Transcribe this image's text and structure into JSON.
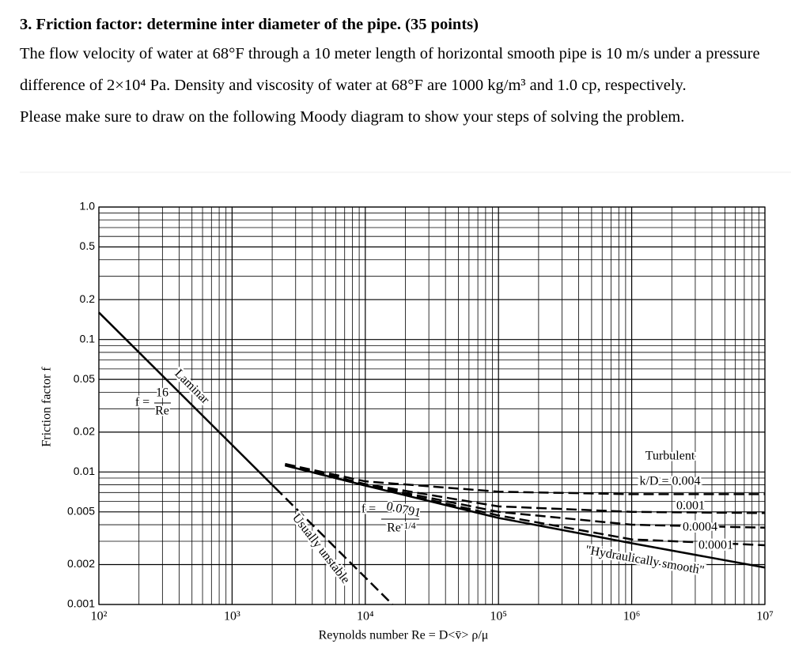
{
  "document": {
    "title": "3. Friction factor: determine inter diameter of the pipe. (35 points)",
    "paragraphs": [
      "The flow velocity of water at 68°F through a 10 meter length of horizontal smooth pipe is 10 m/s under a pressure difference of 2×10⁴ Pa. Density and viscosity of water at 68°F are 1000 kg/m³ and 1.0 cp, respectively.",
      "Please make sure to draw on the following Moody diagram to show your steps of solving the problem."
    ]
  },
  "chart_data": {
    "type": "line",
    "xlabel": "Reynolds number Re = D<v̄> ρ/μ",
    "ylabel": "Friction factor f",
    "xscale": "log",
    "yscale": "log",
    "grid": true,
    "xlim": [
      100,
      10000000
    ],
    "ylim": [
      0.001,
      1
    ],
    "xticks": [
      {
        "value": 100,
        "label": "10²"
      },
      {
        "value": 1000,
        "label": "10³"
      },
      {
        "value": 10000,
        "label": "10⁴"
      },
      {
        "value": 100000,
        "label": "10⁵"
      },
      {
        "value": 1000000,
        "label": "10⁶"
      },
      {
        "value": 10000000,
        "label": "10⁷"
      }
    ],
    "yticks": [
      {
        "value": 1,
        "label": "1.0"
      },
      0.5,
      0.2,
      0.1,
      0.05,
      0.02,
      0.01,
      0.005,
      0.002,
      0.001
    ],
    "x_minor_grid": [
      200,
      300,
      400,
      500,
      600,
      700,
      800,
      900,
      2000,
      3000,
      4000,
      5000,
      6000,
      7000,
      8000,
      9000,
      20000,
      30000,
      40000,
      50000,
      60000,
      70000,
      80000,
      90000,
      200000,
      300000,
      400000,
      500000,
      600000,
      700000,
      800000,
      900000,
      2000000,
      3000000,
      4000000,
      5000000,
      6000000,
      7000000,
      8000000,
      9000000
    ],
    "y_minor_grid": [
      0.9,
      0.8,
      0.7,
      0.6,
      0.4,
      0.3,
      0.09,
      0.08,
      0.07,
      0.06,
      0.04,
      0.03,
      0.009,
      0.008,
      0.007,
      0.006,
      0.004,
      0.003
    ],
    "series": [
      {
        "name": "Laminar",
        "color": "#000000",
        "dashed": false,
        "x": [
          100,
          2100
        ],
        "values": [
          0.16,
          0.00762
        ]
      },
      {
        "name": "Usually unstable",
        "color": "#000000",
        "dashed": true,
        "x": [
          2100,
          16000
        ],
        "values": [
          0.00762,
          0.001
        ]
      },
      {
        "name": "\"Hydraulically smooth\"",
        "color": "#000000",
        "dashed": false,
        "x": [
          2500,
          10000,
          100000,
          1000000,
          10000000
        ],
        "values": [
          0.0112,
          0.0079,
          0.0045,
          0.0029,
          0.0019
        ]
      },
      {
        "name": "k/D = 0.004",
        "color": "#000000",
        "dashed": true,
        "x": [
          2500,
          10000,
          100000,
          1000000,
          10000000
        ],
        "values": [
          0.0115,
          0.0085,
          0.0071,
          0.0068,
          0.0068
        ]
      },
      {
        "name": "0.001",
        "color": "#000000",
        "dashed": true,
        "x": [
          2500,
          10000,
          100000,
          1000000,
          10000000
        ],
        "values": [
          0.0114,
          0.0081,
          0.0055,
          0.005,
          0.0049
        ]
      },
      {
        "name": "0.0004",
        "color": "#000000",
        "dashed": true,
        "x": [
          2500,
          10000,
          100000,
          1000000,
          10000000
        ],
        "values": [
          0.0113,
          0.008,
          0.005,
          0.004,
          0.0038
        ]
      },
      {
        "name": "0.0001",
        "color": "#000000",
        "dashed": true,
        "x": [
          2500,
          10000,
          100000,
          1000000,
          10000000
        ],
        "values": [
          0.0112,
          0.0079,
          0.0047,
          0.0031,
          0.0028
        ]
      }
    ],
    "annotations": [
      "f =",
      "16",
      "Re",
      "Turbulent",
      "f =",
      "0.0791",
      "Re",
      "1/4"
    ]
  }
}
